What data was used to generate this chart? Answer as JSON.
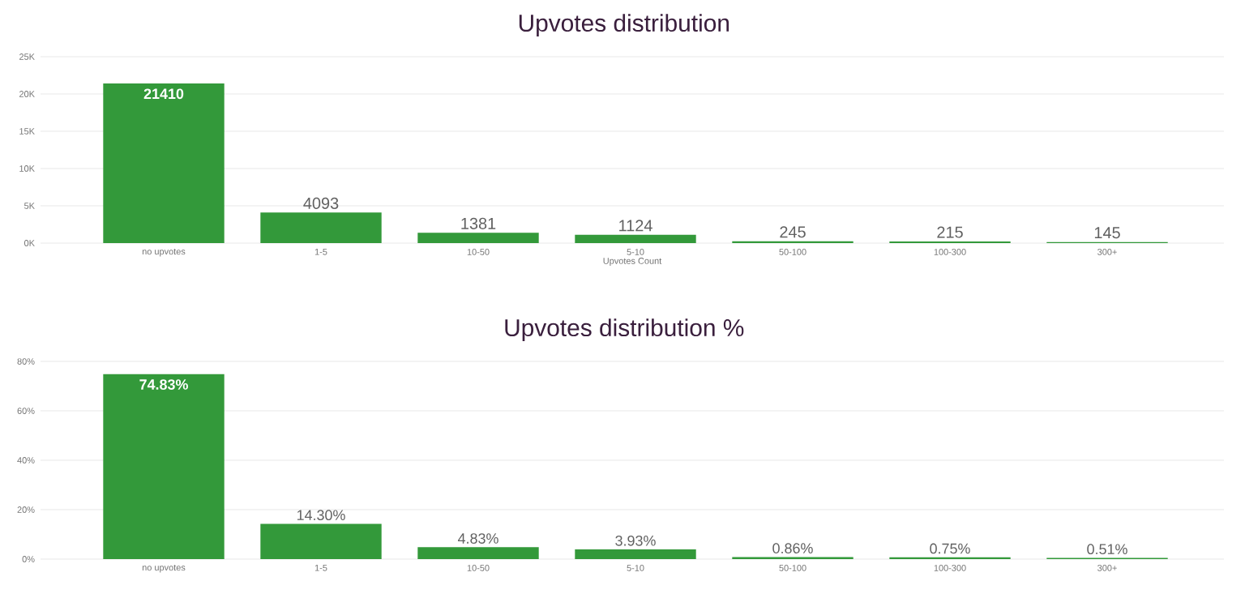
{
  "chart_data": [
    {
      "type": "bar",
      "title": "Upvotes distribution",
      "xlabel": "Upvotes Count",
      "categories": [
        "no upvotes",
        "1-5",
        "10-50",
        "5-10",
        "50-100",
        "100-300",
        "300+"
      ],
      "values": [
        21410,
        4093,
        1381,
        1124,
        245,
        215,
        145
      ],
      "color": "#33993a",
      "ylim": [
        0,
        25000
      ],
      "yticks": [
        {
          "value": 0,
          "label": "0K"
        },
        {
          "value": 5000,
          "label": "5K"
        },
        {
          "value": 10000,
          "label": "10K"
        },
        {
          "value": 15000,
          "label": "15K"
        },
        {
          "value": 20000,
          "label": "20K"
        },
        {
          "value": 25000,
          "label": "25K"
        }
      ],
      "grid": "y",
      "data_labels": true
    },
    {
      "type": "bar",
      "title": "Upvotes distribution %",
      "categories": [
        "no upvotes",
        "1-5",
        "10-50",
        "5-10",
        "50-100",
        "100-300",
        "300+"
      ],
      "values": [
        74.83,
        14.3,
        4.83,
        3.93,
        0.86,
        0.75,
        0.51
      ],
      "value_labels": [
        "74.83%",
        "14.30%",
        "4.83%",
        "3.93%",
        "0.86%",
        "0.75%",
        "0.51%"
      ],
      "color": "#33993a",
      "ylim": [
        0,
        80
      ],
      "yticks": [
        {
          "value": 0,
          "label": "0%"
        },
        {
          "value": 20,
          "label": "20%"
        },
        {
          "value": 40,
          "label": "40%"
        },
        {
          "value": 60,
          "label": "60%"
        },
        {
          "value": 80,
          "label": "80%"
        }
      ],
      "grid": "y"
    }
  ]
}
